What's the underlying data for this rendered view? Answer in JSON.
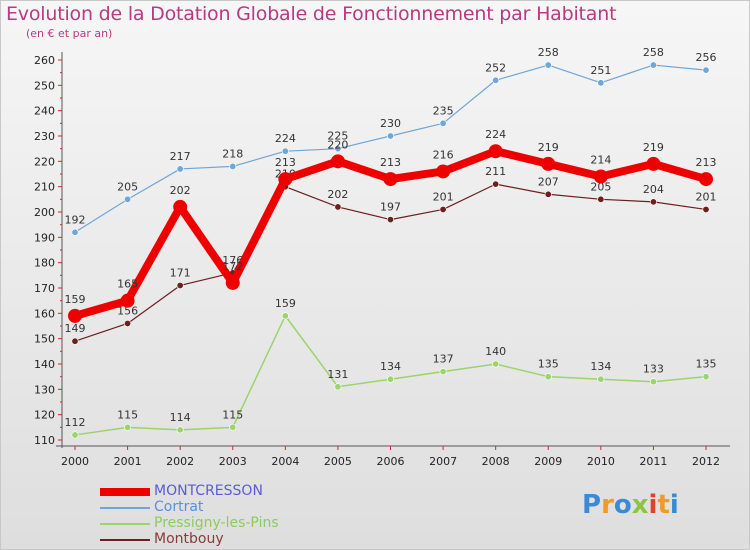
{
  "header": {
    "title": "Evolution de la Dotation Globale de Fonctionnement par Habitant",
    "subtitle": "(en € et par an)"
  },
  "logo": {
    "letters": [
      "P",
      "r",
      "o",
      "x",
      "i",
      "t",
      "i"
    ],
    "colors": [
      "#3d8ad4",
      "#f09a2a",
      "#3d8ad4",
      "#8cc63f",
      "#e0432a",
      "#f09a2a",
      "#3d8ad4"
    ]
  },
  "chart_data": {
    "type": "line",
    "title": "Evolution de la Dotation Globale de Fonctionnement par Habitant",
    "subtitle": "(en € et par an)",
    "xlabel": "",
    "ylabel": "",
    "x": [
      "2000",
      "2001",
      "2002",
      "2003",
      "2004",
      "2005",
      "2006",
      "2007",
      "2008",
      "2009",
      "2010",
      "2011",
      "2012"
    ],
    "ylim": [
      110,
      260
    ],
    "yticks": [
      110,
      120,
      130,
      140,
      150,
      160,
      170,
      180,
      190,
      200,
      210,
      220,
      230,
      240,
      250,
      260
    ],
    "grid": false,
    "legend_position": "bottom-left",
    "series": [
      {
        "name": "Montbouy",
        "color": "#6b1f1f",
        "legend_color": "#8a3a3a",
        "width": 1.2,
        "values": [
          149,
          156,
          171,
          176,
          210,
          202,
          197,
          201,
          211,
          207,
          205,
          204,
          201
        ]
      },
      {
        "name": "Pressigny-les-Pins",
        "color": "#9bd46a",
        "legend_color": "#8ccc5a",
        "width": 1.5,
        "values": [
          112,
          115,
          114,
          115,
          159,
          131,
          134,
          137,
          140,
          135,
          134,
          133,
          135
        ]
      },
      {
        "name": "Cortrat",
        "color": "#6ea6d8",
        "legend_color": "#5b8fd8",
        "width": 1.2,
        "values": [
          192,
          205,
          217,
          218,
          224,
          225,
          230,
          235,
          252,
          258,
          251,
          258,
          256
        ]
      },
      {
        "name": "MONTCRESSON",
        "color": "#ee0000",
        "legend_color": "#5b5bd8",
        "width": 8,
        "values": [
          159,
          165,
          202,
          172,
          213,
          220,
          213,
          216,
          224,
          219,
          214,
          219,
          213
        ]
      }
    ],
    "legend_order": [
      "MONTCRESSON",
      "Cortrat",
      "Pressigny-les-Pins",
      "Montbouy"
    ]
  }
}
